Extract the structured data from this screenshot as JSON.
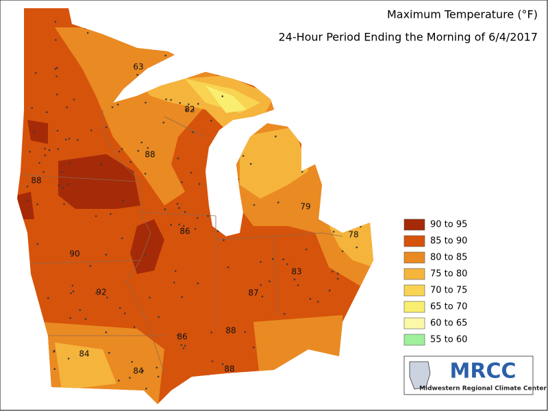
{
  "title": "Maximum Temperature (°F)",
  "subtitle": "24-Hour Period Ending the Morning of 6/4/2017",
  "legend": [
    {
      "label": "90 to 95",
      "color": "#a52a08"
    },
    {
      "label": "85 to 90",
      "color": "#d6530c"
    },
    {
      "label": "80 to 85",
      "color": "#ea8a22"
    },
    {
      "label": "75 to 80",
      "color": "#f5b43c"
    },
    {
      "label": "70 to 75",
      "color": "#f8d452"
    },
    {
      "label": "65 to 70",
      "color": "#f9ee70"
    },
    {
      "label": "60 to 65",
      "color": "#fbf8a8"
    },
    {
      "label": "55 to 60",
      "color": "#9ff09b"
    }
  ],
  "station_labels": [
    "63",
    "82",
    "88",
    "88",
    "79",
    "78",
    "86",
    "90",
    "83",
    "92",
    "87",
    "88",
    "86",
    "84",
    "84",
    "88"
  ],
  "logo": {
    "name": "MRCC",
    "full_name": "Midwestern Regional Climate Center"
  }
}
